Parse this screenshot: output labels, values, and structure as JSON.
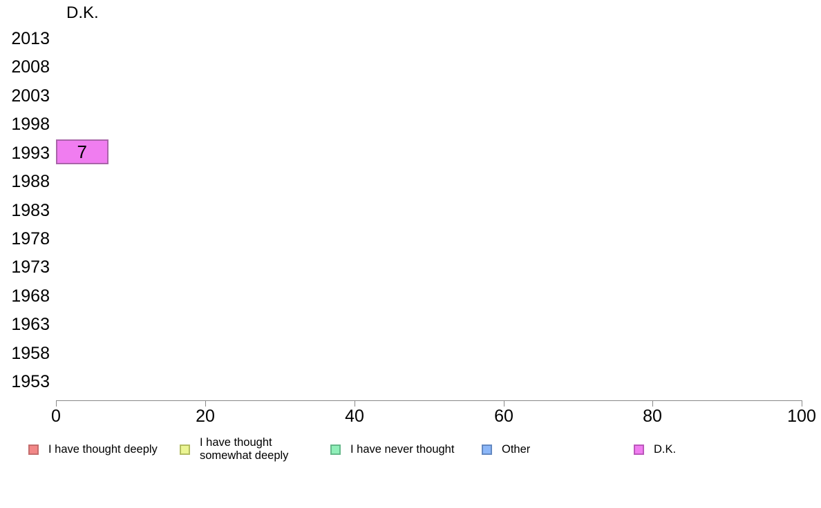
{
  "chart_data": {
    "type": "bar",
    "orientation": "horizontal",
    "title": "D.K.",
    "categories": [
      "2013",
      "2008",
      "2003",
      "1998",
      "1993",
      "1988",
      "1983",
      "1978",
      "1973",
      "1968",
      "1963",
      "1958",
      "1953"
    ],
    "series": [
      {
        "name": "D.K.",
        "color": "#f07df0",
        "values": [
          null,
          null,
          null,
          null,
          7,
          null,
          null,
          null,
          null,
          null,
          null,
          null,
          null
        ]
      }
    ],
    "xlim": [
      0,
      100
    ],
    "xticks": [
      0,
      20,
      40,
      60,
      80,
      100
    ],
    "grid": false,
    "bar_value_labels": true,
    "axis_color": "#888888",
    "legend": {
      "position": "bottom",
      "entries": [
        {
          "label": "I have thought deeply",
          "color": "#f28787"
        },
        {
          "label": "I have thought somewhat deeply",
          "color": "#ebf593"
        },
        {
          "label": "I have never thought",
          "color": "#90efb9"
        },
        {
          "label": "Other",
          "color": "#8cb7f8"
        },
        {
          "label": "D.K.",
          "color": "#f07df0"
        }
      ]
    }
  }
}
